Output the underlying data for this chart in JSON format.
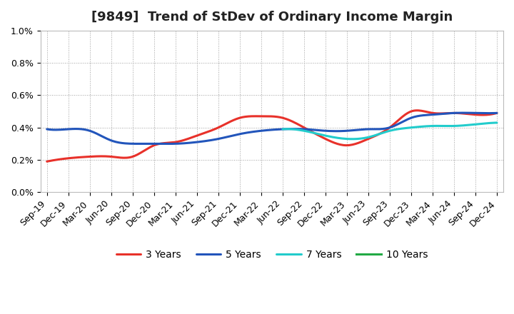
{
  "title": "[9849]  Trend of StDev of Ordinary Income Margin",
  "ylim": [
    0.0,
    0.01
  ],
  "ytick_vals": [
    0.0,
    0.002,
    0.004,
    0.006,
    0.008,
    0.01
  ],
  "ytick_labels": [
    "0.0%",
    "0.2%",
    "0.4%",
    "0.6%",
    "0.8%",
    "1.0%"
  ],
  "x_labels": [
    "Sep-19",
    "Dec-19",
    "Mar-20",
    "Jun-20",
    "Sep-20",
    "Dec-20",
    "Mar-21",
    "Jun-21",
    "Sep-21",
    "Dec-21",
    "Mar-22",
    "Jun-22",
    "Sep-22",
    "Dec-22",
    "Mar-23",
    "Jun-23",
    "Sep-23",
    "Dec-23",
    "Mar-24",
    "Jun-24",
    "Sep-24",
    "Dec-24"
  ],
  "series_3yr": [
    0.0019,
    0.0021,
    0.0022,
    0.0022,
    0.0022,
    0.0029,
    0.0031,
    0.0035,
    0.004,
    0.0046,
    0.0047,
    0.0046,
    0.004,
    0.0033,
    0.0029,
    0.0033,
    0.004,
    0.005,
    0.0049,
    0.0049,
    0.0048,
    0.0049
  ],
  "series_5yr": [
    0.0039,
    0.0039,
    0.0038,
    0.0032,
    0.003,
    0.003,
    0.003,
    0.0031,
    0.0033,
    0.0036,
    0.0038,
    0.0039,
    0.0039,
    0.0038,
    0.0038,
    0.0039,
    0.004,
    0.0046,
    0.0048,
    0.0049,
    0.0049,
    0.0049
  ],
  "series_7yr": [
    null,
    null,
    null,
    null,
    null,
    null,
    null,
    null,
    null,
    null,
    null,
    0.0039,
    0.0038,
    0.0035,
    0.0033,
    0.0034,
    0.0038,
    0.004,
    0.0041,
    0.0041,
    0.0042,
    0.0043
  ],
  "series_10yr": [
    null,
    null,
    null,
    null,
    null,
    null,
    null,
    null,
    null,
    null,
    null,
    null,
    null,
    null,
    null,
    null,
    null,
    null,
    null,
    null,
    null,
    null
  ],
  "color_3yr": "#e8312a",
  "color_5yr": "#2255bb",
  "color_7yr": "#22cccc",
  "color_10yr": "#22aa44",
  "background_color": "#ffffff",
  "plot_bg_color": "#ffffff",
  "grid_color": "#888888",
  "legend_labels": [
    "3 Years",
    "5 Years",
    "7 Years",
    "10 Years"
  ],
  "title_fontsize": 13,
  "tick_fontsize": 9,
  "legend_fontsize": 10,
  "linewidth": 2.2
}
